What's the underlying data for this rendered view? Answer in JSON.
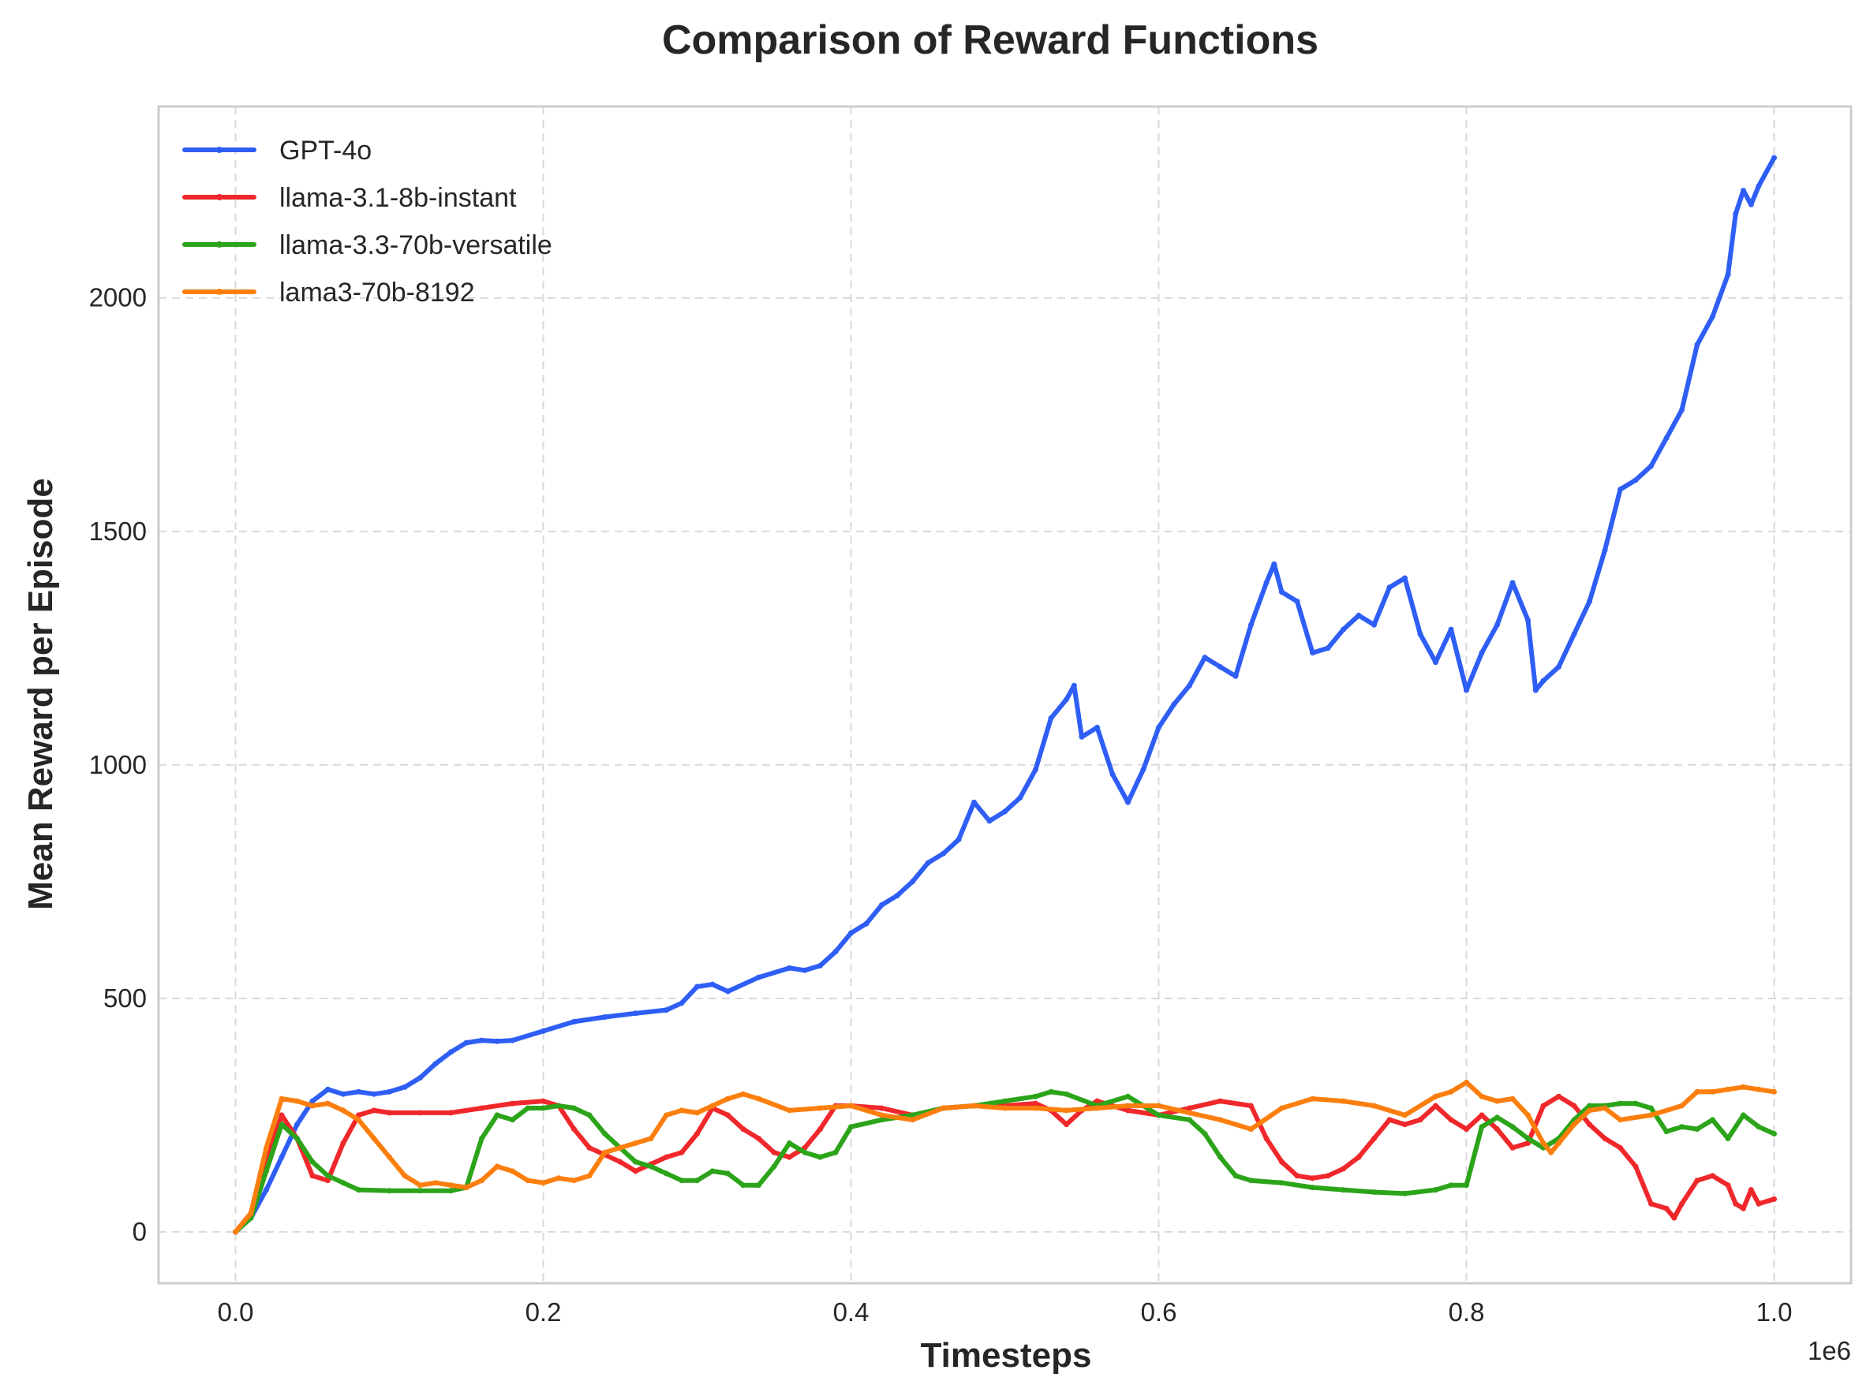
{
  "chart_data": {
    "type": "line",
    "title": "Comparison of Reward Functions",
    "xlabel": "Timesteps",
    "ylabel": "Mean Reward per Episode",
    "x_offset_label": "1e6",
    "xlim": [
      -0.05,
      1.05
    ],
    "ylim": [
      -110,
      2410
    ],
    "x_scale_note": "x values are in units of 1e6 timesteps",
    "x_ticks": [
      0.0,
      0.2,
      0.4,
      0.6,
      0.8,
      1.0
    ],
    "x_tick_labels": [
      "0.0",
      "0.2",
      "0.4",
      "0.6",
      "0.8",
      "1.0"
    ],
    "y_ticks": [
      0,
      500,
      1000,
      1500,
      2000
    ],
    "y_tick_labels": [
      "0",
      "500",
      "1000",
      "1500",
      "2000"
    ],
    "grid": true,
    "legend_position": "top-left",
    "series": [
      {
        "name": "GPT-4o",
        "color": "#2e5ef5",
        "x": [
          0.0,
          0.01,
          0.02,
          0.03,
          0.04,
          0.05,
          0.06,
          0.07,
          0.08,
          0.09,
          0.1,
          0.11,
          0.12,
          0.13,
          0.14,
          0.15,
          0.16,
          0.17,
          0.18,
          0.2,
          0.22,
          0.24,
          0.26,
          0.28,
          0.29,
          0.3,
          0.31,
          0.32,
          0.34,
          0.36,
          0.37,
          0.38,
          0.39,
          0.4,
          0.41,
          0.42,
          0.43,
          0.44,
          0.45,
          0.46,
          0.47,
          0.48,
          0.49,
          0.5,
          0.51,
          0.52,
          0.53,
          0.54,
          0.545,
          0.55,
          0.56,
          0.57,
          0.58,
          0.59,
          0.6,
          0.61,
          0.62,
          0.63,
          0.64,
          0.65,
          0.66,
          0.67,
          0.675,
          0.68,
          0.69,
          0.7,
          0.71,
          0.72,
          0.73,
          0.74,
          0.75,
          0.76,
          0.77,
          0.78,
          0.79,
          0.8,
          0.81,
          0.82,
          0.83,
          0.84,
          0.845,
          0.85,
          0.86,
          0.87,
          0.88,
          0.89,
          0.9,
          0.91,
          0.92,
          0.93,
          0.94,
          0.95,
          0.96,
          0.97,
          0.975,
          0.98,
          0.985,
          0.99,
          1.0
        ],
        "y": [
          0,
          30,
          90,
          160,
          230,
          280,
          305,
          295,
          300,
          295,
          300,
          310,
          330,
          360,
          385,
          405,
          410,
          408,
          410,
          430,
          450,
          460,
          468,
          475,
          490,
          525,
          530,
          515,
          545,
          565,
          560,
          570,
          600,
          640,
          660,
          700,
          720,
          750,
          790,
          810,
          840,
          920,
          880,
          900,
          930,
          990,
          1100,
          1140,
          1170,
          1060,
          1080,
          980,
          920,
          990,
          1080,
          1130,
          1170,
          1230,
          1210,
          1190,
          1300,
          1390,
          1430,
          1370,
          1350,
          1240,
          1250,
          1290,
          1320,
          1300,
          1380,
          1400,
          1280,
          1220,
          1290,
          1160,
          1240,
          1300,
          1390,
          1310,
          1160,
          1180,
          1210,
          1280,
          1350,
          1460,
          1590,
          1610,
          1640,
          1700,
          1760,
          1900,
          1960,
          2050,
          2180,
          2230,
          2200,
          2240,
          2300
        ]
      },
      {
        "name": "llama-3.1-8b-instant",
        "color": "#f0282b",
        "x": [
          0.0,
          0.01,
          0.02,
          0.03,
          0.04,
          0.05,
          0.06,
          0.07,
          0.08,
          0.09,
          0.1,
          0.12,
          0.14,
          0.16,
          0.18,
          0.2,
          0.21,
          0.22,
          0.23,
          0.24,
          0.25,
          0.26,
          0.27,
          0.28,
          0.29,
          0.3,
          0.31,
          0.32,
          0.33,
          0.34,
          0.35,
          0.36,
          0.37,
          0.38,
          0.39,
          0.4,
          0.42,
          0.44,
          0.46,
          0.48,
          0.5,
          0.52,
          0.53,
          0.54,
          0.55,
          0.56,
          0.58,
          0.6,
          0.62,
          0.64,
          0.66,
          0.67,
          0.68,
          0.69,
          0.7,
          0.71,
          0.72,
          0.73,
          0.74,
          0.75,
          0.76,
          0.77,
          0.78,
          0.79,
          0.8,
          0.81,
          0.82,
          0.83,
          0.84,
          0.85,
          0.86,
          0.87,
          0.88,
          0.89,
          0.9,
          0.91,
          0.92,
          0.93,
          0.935,
          0.94,
          0.95,
          0.96,
          0.97,
          0.975,
          0.98,
          0.985,
          0.99,
          1.0
        ],
        "y": [
          0,
          40,
          150,
          250,
          200,
          120,
          110,
          190,
          250,
          260,
          255,
          255,
          255,
          265,
          275,
          280,
          270,
          220,
          180,
          165,
          150,
          130,
          145,
          160,
          170,
          210,
          265,
          250,
          220,
          200,
          170,
          160,
          180,
          220,
          270,
          270,
          265,
          250,
          265,
          270,
          270,
          275,
          260,
          230,
          260,
          280,
          260,
          250,
          265,
          280,
          270,
          200,
          150,
          120,
          115,
          120,
          135,
          160,
          200,
          240,
          230,
          240,
          270,
          240,
          220,
          250,
          220,
          180,
          190,
          270,
          290,
          270,
          230,
          200,
          180,
          140,
          60,
          50,
          30,
          60,
          110,
          120,
          100,
          60,
          50,
          90,
          60,
          70
        ]
      },
      {
        "name": "llama-3.3-70b-versatile",
        "color": "#2ca41a",
        "x": [
          0.0,
          0.01,
          0.02,
          0.03,
          0.04,
          0.05,
          0.06,
          0.07,
          0.08,
          0.1,
          0.12,
          0.14,
          0.15,
          0.16,
          0.17,
          0.18,
          0.19,
          0.2,
          0.21,
          0.22,
          0.23,
          0.24,
          0.25,
          0.26,
          0.27,
          0.28,
          0.29,
          0.3,
          0.31,
          0.32,
          0.33,
          0.34,
          0.35,
          0.36,
          0.37,
          0.38,
          0.39,
          0.4,
          0.42,
          0.44,
          0.46,
          0.48,
          0.5,
          0.52,
          0.53,
          0.54,
          0.56,
          0.58,
          0.6,
          0.62,
          0.63,
          0.64,
          0.65,
          0.66,
          0.68,
          0.7,
          0.72,
          0.74,
          0.76,
          0.78,
          0.79,
          0.8,
          0.81,
          0.82,
          0.83,
          0.84,
          0.85,
          0.86,
          0.87,
          0.88,
          0.89,
          0.9,
          0.91,
          0.92,
          0.93,
          0.94,
          0.95,
          0.96,
          0.97,
          0.98,
          0.99,
          1.0
        ],
        "y": [
          0,
          30,
          130,
          230,
          200,
          150,
          120,
          105,
          90,
          88,
          88,
          88,
          95,
          200,
          250,
          240,
          265,
          265,
          270,
          265,
          250,
          210,
          180,
          150,
          140,
          125,
          110,
          110,
          130,
          125,
          100,
          100,
          140,
          190,
          170,
          160,
          170,
          225,
          240,
          250,
          265,
          270,
          280,
          290,
          300,
          295,
          270,
          290,
          250,
          240,
          210,
          160,
          120,
          110,
          105,
          95,
          90,
          85,
          82,
          90,
          100,
          100,
          225,
          245,
          225,
          200,
          180,
          200,
          240,
          270,
          270,
          275,
          275,
          265,
          215,
          225,
          220,
          240,
          200,
          250,
          225,
          210
        ]
      },
      {
        "name": "lama3-70b-8192",
        "color": "#fc7f0e",
        "x": [
          0.0,
          0.01,
          0.02,
          0.03,
          0.04,
          0.05,
          0.06,
          0.07,
          0.08,
          0.09,
          0.1,
          0.11,
          0.12,
          0.13,
          0.14,
          0.15,
          0.16,
          0.17,
          0.18,
          0.19,
          0.2,
          0.21,
          0.22,
          0.23,
          0.24,
          0.25,
          0.26,
          0.27,
          0.28,
          0.29,
          0.3,
          0.31,
          0.32,
          0.33,
          0.34,
          0.36,
          0.38,
          0.4,
          0.42,
          0.44,
          0.46,
          0.48,
          0.5,
          0.52,
          0.54,
          0.56,
          0.58,
          0.6,
          0.62,
          0.64,
          0.66,
          0.68,
          0.7,
          0.72,
          0.74,
          0.76,
          0.78,
          0.79,
          0.8,
          0.81,
          0.82,
          0.83,
          0.84,
          0.85,
          0.855,
          0.86,
          0.87,
          0.88,
          0.89,
          0.9,
          0.92,
          0.94,
          0.95,
          0.96,
          0.97,
          0.98,
          0.99,
          1.0
        ],
        "y": [
          0,
          40,
          180,
          285,
          280,
          270,
          275,
          260,
          240,
          200,
          160,
          120,
          100,
          105,
          100,
          95,
          110,
          140,
          130,
          110,
          105,
          115,
          110,
          120,
          170,
          180,
          190,
          200,
          250,
          260,
          255,
          270,
          285,
          295,
          285,
          260,
          265,
          270,
          250,
          240,
          265,
          270,
          265,
          265,
          260,
          265,
          270,
          270,
          255,
          240,
          220,
          265,
          285,
          280,
          270,
          250,
          290,
          300,
          320,
          290,
          280,
          285,
          250,
          190,
          170,
          190,
          230,
          260,
          265,
          240,
          250,
          270,
          300,
          300,
          305,
          310,
          305,
          300
        ]
      }
    ]
  }
}
